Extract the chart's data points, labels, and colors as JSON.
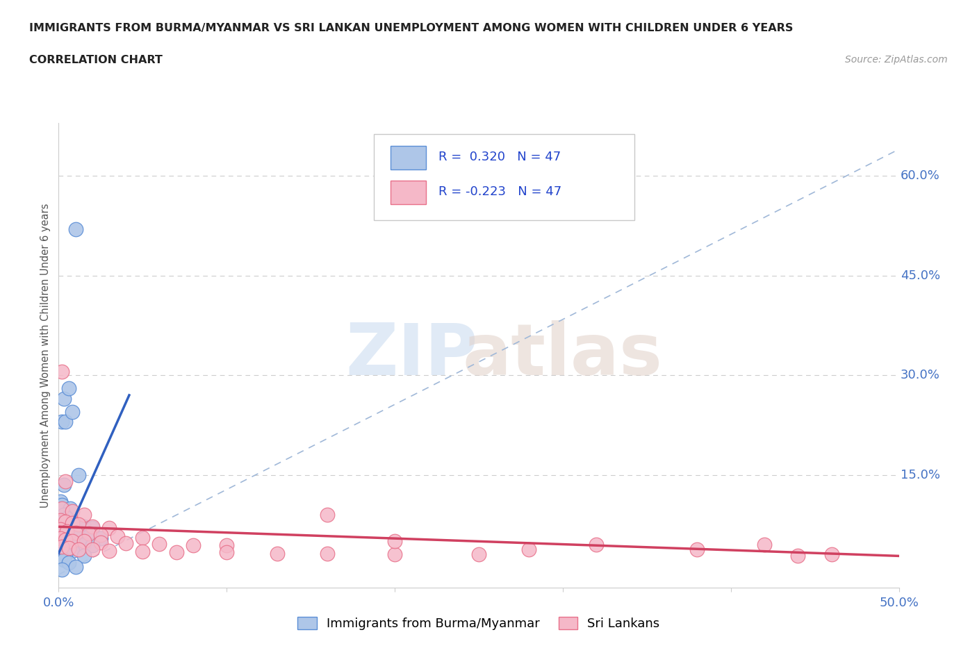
{
  "title": "IMMIGRANTS FROM BURMA/MYANMAR VS SRI LANKAN UNEMPLOYMENT AMONG WOMEN WITH CHILDREN UNDER 6 YEARS",
  "subtitle": "CORRELATION CHART",
  "source": "Source: ZipAtlas.com",
  "ylabel": "Unemployment Among Women with Children Under 6 years",
  "xlim": [
    0.0,
    0.5
  ],
  "ylim": [
    -0.02,
    0.68
  ],
  "xticks": [
    0.0,
    0.1,
    0.2,
    0.3,
    0.4,
    0.5
  ],
  "xticklabels": [
    "0.0%",
    "",
    "",
    "",
    "",
    "50.0%"
  ],
  "ytick_right": [
    0.15,
    0.3,
    0.45,
    0.6
  ],
  "ytick_right_labels": [
    "15.0%",
    "30.0%",
    "45.0%",
    "60.0%"
  ],
  "blue_color": "#aec6e8",
  "pink_color": "#f5b8c8",
  "blue_edge_color": "#5b8ed6",
  "pink_edge_color": "#e8708a",
  "blue_line_color": "#3060c0",
  "pink_line_color": "#d04060",
  "diag_color": "#a0b8d8",
  "scatter_blue": [
    [
      0.01,
      0.52
    ],
    [
      0.003,
      0.265
    ],
    [
      0.006,
      0.28
    ],
    [
      0.002,
      0.23
    ],
    [
      0.004,
      0.23
    ],
    [
      0.008,
      0.245
    ],
    [
      0.012,
      0.15
    ],
    [
      0.003,
      0.135
    ],
    [
      0.001,
      0.11
    ],
    [
      0.002,
      0.105
    ],
    [
      0.007,
      0.1
    ],
    [
      0.003,
      0.09
    ],
    [
      0.005,
      0.085
    ],
    [
      0.002,
      0.08
    ],
    [
      0.004,
      0.08
    ],
    [
      0.008,
      0.078
    ],
    [
      0.01,
      0.075
    ],
    [
      0.015,
      0.072
    ],
    [
      0.02,
      0.07
    ],
    [
      0.001,
      0.068
    ],
    [
      0.003,
      0.065
    ],
    [
      0.006,
      0.063
    ],
    [
      0.009,
      0.062
    ],
    [
      0.012,
      0.06
    ],
    [
      0.018,
      0.058
    ],
    [
      0.025,
      0.055
    ],
    [
      0.001,
      0.055
    ],
    [
      0.002,
      0.052
    ],
    [
      0.004,
      0.05
    ],
    [
      0.006,
      0.05
    ],
    [
      0.009,
      0.048
    ],
    [
      0.012,
      0.047
    ],
    [
      0.015,
      0.045
    ],
    [
      0.02,
      0.044
    ],
    [
      0.001,
      0.042
    ],
    [
      0.003,
      0.04
    ],
    [
      0.005,
      0.038
    ],
    [
      0.008,
      0.036
    ],
    [
      0.001,
      0.035
    ],
    [
      0.002,
      0.032
    ],
    [
      0.004,
      0.03
    ],
    [
      0.015,
      0.028
    ],
    [
      0.001,
      0.025
    ],
    [
      0.003,
      0.022
    ],
    [
      0.006,
      0.018
    ],
    [
      0.01,
      0.012
    ],
    [
      0.002,
      0.008
    ]
  ],
  "scatter_pink": [
    [
      0.002,
      0.305
    ],
    [
      0.004,
      0.14
    ],
    [
      0.002,
      0.1
    ],
    [
      0.008,
      0.095
    ],
    [
      0.015,
      0.09
    ],
    [
      0.001,
      0.082
    ],
    [
      0.004,
      0.08
    ],
    [
      0.008,
      0.078
    ],
    [
      0.012,
      0.075
    ],
    [
      0.02,
      0.072
    ],
    [
      0.03,
      0.07
    ],
    [
      0.001,
      0.068
    ],
    [
      0.005,
      0.065
    ],
    [
      0.01,
      0.063
    ],
    [
      0.018,
      0.062
    ],
    [
      0.025,
      0.06
    ],
    [
      0.035,
      0.058
    ],
    [
      0.05,
      0.056
    ],
    [
      0.001,
      0.055
    ],
    [
      0.004,
      0.052
    ],
    [
      0.008,
      0.05
    ],
    [
      0.015,
      0.05
    ],
    [
      0.025,
      0.048
    ],
    [
      0.04,
      0.047
    ],
    [
      0.06,
      0.046
    ],
    [
      0.08,
      0.044
    ],
    [
      0.1,
      0.044
    ],
    [
      0.002,
      0.042
    ],
    [
      0.006,
      0.04
    ],
    [
      0.012,
      0.038
    ],
    [
      0.02,
      0.038
    ],
    [
      0.03,
      0.036
    ],
    [
      0.05,
      0.035
    ],
    [
      0.07,
      0.034
    ],
    [
      0.1,
      0.034
    ],
    [
      0.13,
      0.032
    ],
    [
      0.16,
      0.032
    ],
    [
      0.2,
      0.031
    ],
    [
      0.25,
      0.03
    ],
    [
      0.16,
      0.09
    ],
    [
      0.2,
      0.05
    ],
    [
      0.28,
      0.038
    ],
    [
      0.32,
      0.045
    ],
    [
      0.38,
      0.038
    ],
    [
      0.42,
      0.045
    ],
    [
      0.44,
      0.028
    ],
    [
      0.46,
      0.03
    ]
  ],
  "blue_trend_x": [
    0.0,
    0.042
  ],
  "blue_trend_y": [
    0.032,
    0.27
  ],
  "pink_trend_x": [
    0.0,
    0.5
  ],
  "pink_trend_y": [
    0.072,
    0.028
  ]
}
